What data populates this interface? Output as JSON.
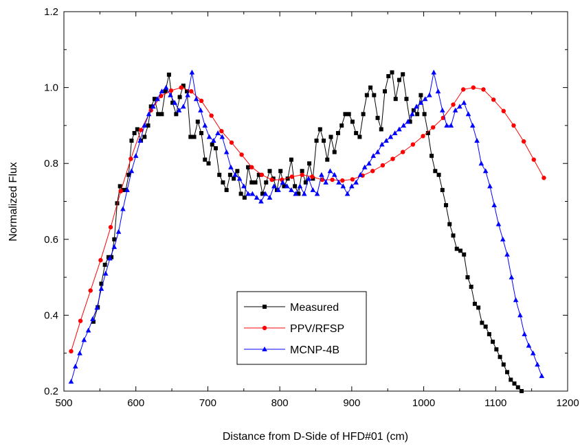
{
  "chart_data": {
    "type": "line",
    "title": "",
    "xlabel": "Distance from D-Side of HFD#01 (cm)",
    "ylabel": "Normalized Flux",
    "xlim": [
      500,
      1200
    ],
    "ylim": [
      0.2,
      1.2
    ],
    "xticks": [
      500,
      600,
      700,
      800,
      900,
      1000,
      1100,
      1200
    ],
    "yticks": [
      0.2,
      0.4,
      0.6,
      0.8,
      1.0,
      1.2
    ],
    "xtick_labels": [
      "500",
      "600",
      "700",
      "800",
      "900",
      "1000",
      "1100",
      "1200"
    ],
    "ytick_labels": [
      "0.2",
      "0.4",
      "0.6",
      "0.8",
      "1.0",
      "1.2"
    ],
    "grid": false,
    "legend_position": "bottom-center",
    "series": [
      {
        "name": "Measured",
        "color": "#000000",
        "marker": "square",
        "x": [
          541,
          547,
          552,
          557,
          562,
          566,
          570,
          574,
          578,
          582,
          586,
          590,
          594,
          598,
          602,
          607,
          612,
          617,
          621,
          626,
          631,
          636,
          641,
          646,
          651,
          656,
          661,
          666,
          671,
          676,
          681,
          686,
          691,
          696,
          701,
          706,
          711,
          716,
          721,
          726,
          731,
          736,
          741,
          746,
          751,
          756,
          761,
          766,
          771,
          776,
          781,
          786,
          791,
          796,
          801,
          806,
          811,
          816,
          821,
          826,
          831,
          836,
          841,
          846,
          851,
          856,
          861,
          866,
          871,
          876,
          881,
          886,
          891,
          896,
          901,
          906,
          911,
          916,
          921,
          926,
          931,
          936,
          941,
          946,
          951,
          956,
          961,
          966,
          971,
          976,
          981,
          986,
          991,
          996,
          1001,
          1006,
          1011,
          1016,
          1021,
          1026,
          1031,
          1036,
          1041,
          1046,
          1051,
          1056,
          1061,
          1066,
          1071,
          1076,
          1081,
          1086,
          1091,
          1096,
          1101,
          1106,
          1111,
          1116,
          1121,
          1126,
          1131,
          1136
        ],
        "y": [
          0.383,
          0.421,
          0.483,
          0.533,
          0.553,
          0.553,
          0.6,
          0.695,
          0.74,
          0.73,
          0.73,
          0.77,
          0.86,
          0.88,
          0.89,
          0.86,
          0.87,
          0.9,
          0.95,
          0.97,
          0.93,
          0.93,
          0.99,
          1.034,
          0.96,
          0.93,
          0.975,
          1.005,
          0.99,
          0.87,
          0.87,
          0.91,
          0.88,
          0.81,
          0.8,
          0.85,
          0.84,
          0.77,
          0.75,
          0.73,
          0.77,
          0.76,
          0.78,
          0.72,
          0.71,
          0.79,
          0.75,
          0.75,
          0.77,
          0.72,
          0.75,
          0.78,
          0.76,
          0.73,
          0.78,
          0.74,
          0.76,
          0.81,
          0.74,
          0.72,
          0.78,
          0.75,
          0.8,
          0.76,
          0.86,
          0.89,
          0.86,
          0.81,
          0.87,
          0.83,
          0.88,
          0.9,
          0.93,
          0.93,
          0.91,
          0.88,
          0.87,
          0.93,
          0.98,
          1.0,
          0.98,
          0.92,
          0.89,
          0.99,
          1.03,
          1.04,
          0.97,
          1.02,
          1.035,
          0.97,
          0.91,
          0.94,
          0.93,
          0.98,
          0.93,
          0.88,
          0.82,
          0.78,
          0.77,
          0.73,
          0.69,
          0.64,
          0.61,
          0.575,
          0.57,
          0.56,
          0.5,
          0.475,
          0.43,
          0.42,
          0.38,
          0.37,
          0.35,
          0.33,
          0.31,
          0.29,
          0.27,
          0.25,
          0.23,
          0.22,
          0.21,
          0.2
        ]
      },
      {
        "name": "PPV/RFSP",
        "color": "#ff0000",
        "marker": "circle",
        "x": [
          510,
          523,
          537,
          551,
          565,
          579,
          593,
          607,
          621,
          635,
          649,
          663,
          677,
          691,
          705,
          719,
          733,
          747,
          761,
          775,
          789,
          803,
          817,
          831,
          845,
          859,
          873,
          887,
          901,
          915,
          929,
          943,
          957,
          971,
          985,
          999,
          1013,
          1027,
          1041,
          1055,
          1069,
          1083,
          1097,
          1111,
          1125,
          1139,
          1153,
          1167
        ],
        "y": [
          0.305,
          0.385,
          0.465,
          0.545,
          0.632,
          0.727,
          0.812,
          0.888,
          0.94,
          0.978,
          0.992,
          1.0,
          0.99,
          0.965,
          0.926,
          0.885,
          0.855,
          0.823,
          0.79,
          0.77,
          0.757,
          0.757,
          0.765,
          0.77,
          0.765,
          0.757,
          0.757,
          0.755,
          0.758,
          0.768,
          0.78,
          0.795,
          0.812,
          0.83,
          0.85,
          0.872,
          0.895,
          0.92,
          0.955,
          0.995,
          1.0,
          0.995,
          0.968,
          0.938,
          0.9,
          0.858,
          0.81,
          0.762
        ]
      },
      {
        "name": "MCNP-4B",
        "color": "#0000ff",
        "marker": "triangle",
        "x": [
          510,
          516,
          522,
          528,
          534,
          540,
          546,
          552,
          558,
          564,
          570,
          576,
          582,
          588,
          594,
          600,
          606,
          612,
          618,
          624,
          630,
          636,
          642,
          648,
          654,
          660,
          666,
          672,
          678,
          684,
          690,
          696,
          702,
          708,
          714,
          720,
          726,
          732,
          738,
          744,
          750,
          756,
          762,
          768,
          774,
          780,
          786,
          792,
          798,
          804,
          810,
          816,
          822,
          828,
          834,
          840,
          846,
          852,
          858,
          864,
          870,
          876,
          882,
          888,
          894,
          900,
          906,
          912,
          918,
          924,
          930,
          936,
          942,
          948,
          954,
          960,
          966,
          972,
          978,
          984,
          990,
          996,
          1002,
          1008,
          1014,
          1020,
          1026,
          1032,
          1038,
          1044,
          1050,
          1056,
          1062,
          1068,
          1074,
          1080,
          1086,
          1092,
          1098,
          1104,
          1110,
          1116,
          1122,
          1128,
          1134,
          1140,
          1146,
          1152,
          1158,
          1164
        ],
        "y": [
          0.225,
          0.265,
          0.3,
          0.335,
          0.36,
          0.39,
          0.42,
          0.47,
          0.51,
          0.55,
          0.58,
          0.62,
          0.68,
          0.73,
          0.78,
          0.82,
          0.86,
          0.9,
          0.93,
          0.95,
          0.97,
          0.99,
          1.0,
          0.98,
          0.96,
          0.94,
          0.95,
          0.98,
          1.04,
          0.97,
          0.94,
          0.9,
          0.87,
          0.86,
          0.88,
          0.87,
          0.83,
          0.79,
          0.77,
          0.76,
          0.74,
          0.72,
          0.72,
          0.71,
          0.7,
          0.72,
          0.71,
          0.74,
          0.73,
          0.75,
          0.74,
          0.73,
          0.72,
          0.74,
          0.72,
          0.76,
          0.73,
          0.72,
          0.77,
          0.75,
          0.78,
          0.77,
          0.75,
          0.74,
          0.72,
          0.74,
          0.75,
          0.77,
          0.79,
          0.8,
          0.82,
          0.83,
          0.85,
          0.86,
          0.87,
          0.88,
          0.89,
          0.9,
          0.91,
          0.93,
          0.95,
          0.96,
          0.97,
          0.98,
          1.04,
          0.99,
          0.94,
          0.9,
          0.9,
          0.94,
          0.95,
          0.96,
          0.93,
          0.9,
          0.86,
          0.8,
          0.78,
          0.74,
          0.69,
          0.64,
          0.6,
          0.56,
          0.5,
          0.44,
          0.4,
          0.35,
          0.32,
          0.3,
          0.27,
          0.24
        ]
      }
    ]
  }
}
